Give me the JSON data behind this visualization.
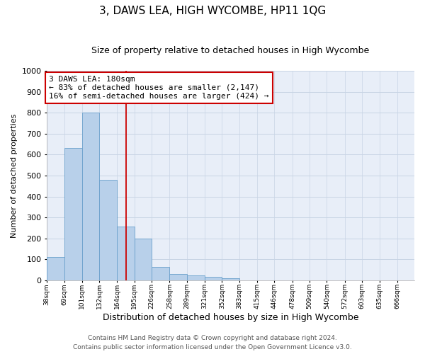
{
  "title": "3, DAWS LEA, HIGH WYCOMBE, HP11 1QG",
  "subtitle": "Size of property relative to detached houses in High Wycombe",
  "xlabel": "Distribution of detached houses by size in High Wycombe",
  "ylabel": "Number of detached properties",
  "bar_values": [
    110,
    630,
    800,
    480,
    255,
    200,
    65,
    30,
    22,
    15,
    10,
    0,
    0,
    0,
    0,
    0,
    0,
    0,
    0,
    0,
    0
  ],
  "bin_edges": [
    38,
    69,
    101,
    132,
    164,
    195,
    226,
    258,
    289,
    321,
    352,
    383,
    415,
    446,
    478,
    509,
    540,
    572,
    603,
    635,
    666,
    697
  ],
  "tick_labels": [
    "38sqm",
    "69sqm",
    "101sqm",
    "132sqm",
    "164sqm",
    "195sqm",
    "226sqm",
    "258sqm",
    "289sqm",
    "321sqm",
    "352sqm",
    "383sqm",
    "415sqm",
    "446sqm",
    "478sqm",
    "509sqm",
    "540sqm",
    "572sqm",
    "603sqm",
    "635sqm",
    "666sqm"
  ],
  "bar_color": "#b8d0ea",
  "bar_edge_color": "#6aa0cc",
  "vline_x": 180,
  "vline_color": "#cc0000",
  "annotation_title": "3 DAWS LEA: 180sqm",
  "annotation_line1": "← 83% of detached houses are smaller (2,147)",
  "annotation_line2": "16% of semi-detached houses are larger (424) →",
  "annotation_box_color": "#cc0000",
  "ylim": [
    0,
    1000
  ],
  "yticks": [
    0,
    100,
    200,
    300,
    400,
    500,
    600,
    700,
    800,
    900,
    1000
  ],
  "grid_color": "#c8d4e4",
  "background_color": "#e8eef8",
  "footer_line1": "Contains HM Land Registry data © Crown copyright and database right 2024.",
  "footer_line2": "Contains public sector information licensed under the Open Government Licence v3.0.",
  "title_fontsize": 11,
  "subtitle_fontsize": 9,
  "xlabel_fontsize": 9,
  "ylabel_fontsize": 8,
  "footer_fontsize": 6.5
}
